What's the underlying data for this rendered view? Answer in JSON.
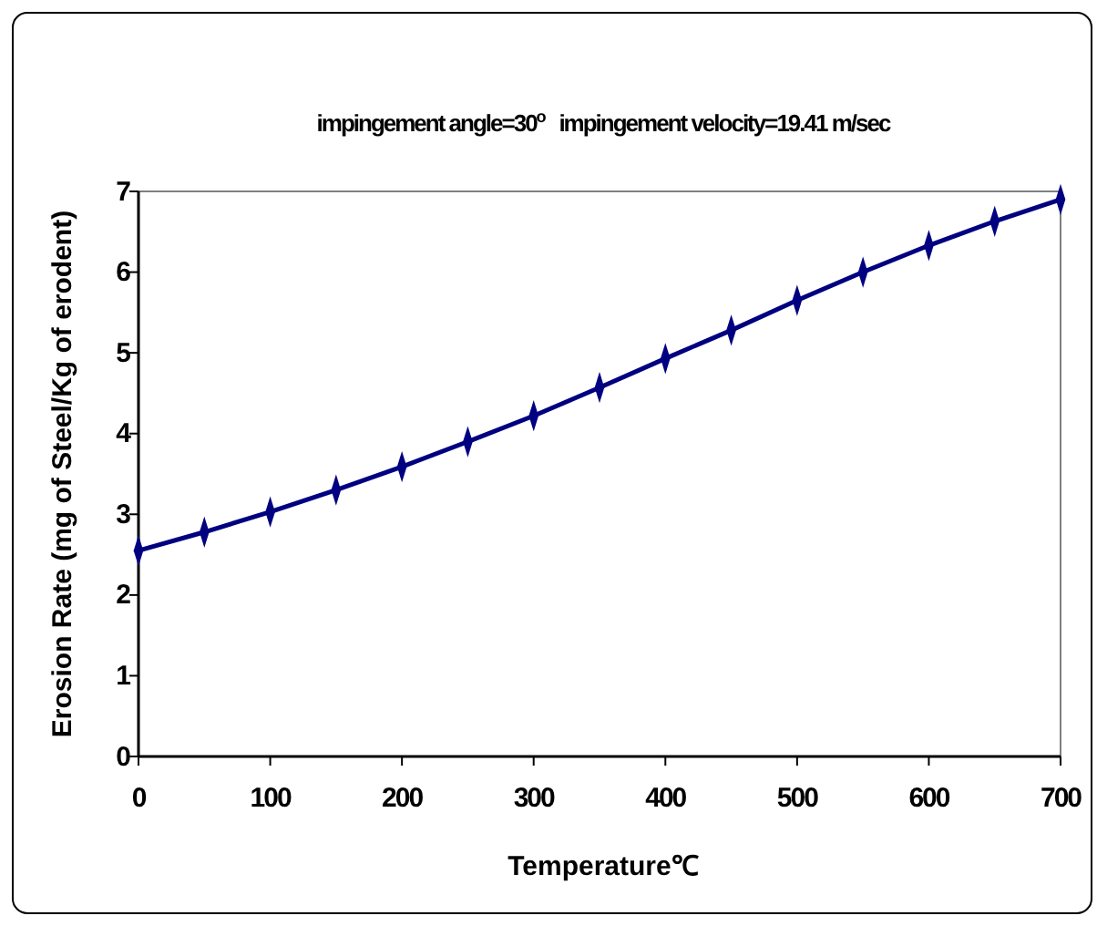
{
  "chart_data": {
    "type": "line",
    "title": "impingement angle=30$^{o}$   impingement velocity=19.41 m/sec",
    "xlabel": "Temperature℃",
    "ylabel": "Erosion Rate (mg of Steel/Kg of erodent)",
    "x": [
      0,
      50,
      100,
      150,
      200,
      250,
      300,
      350,
      400,
      450,
      500,
      550,
      600,
      650,
      700
    ],
    "series": [
      {
        "color": "#000080",
        "values": [
          2.55,
          2.78,
          3.03,
          3.3,
          3.59,
          3.9,
          4.22,
          4.57,
          4.93,
          5.28,
          5.65,
          6.0,
          6.33,
          6.63,
          6.9
        ]
      }
    ],
    "xlim": [
      0,
      700
    ],
    "xticks": [
      0,
      100,
      200,
      300,
      400,
      500,
      600,
      700
    ],
    "ylim": [
      0,
      7
    ],
    "yticks": [
      0,
      1,
      2,
      3,
      4,
      5,
      6,
      7
    ],
    "grid": false,
    "marker": "diamond",
    "line_style": "solid"
  }
}
